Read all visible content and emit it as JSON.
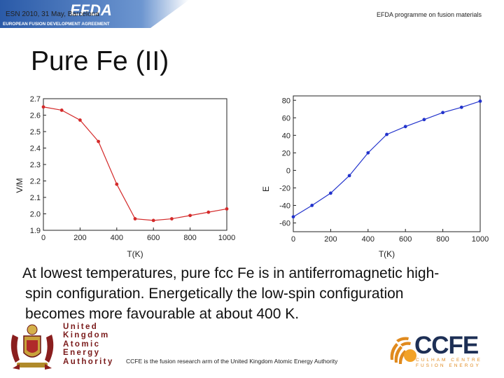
{
  "header": {
    "left": "ESN 2010, 31 May, Barcelona",
    "right": "EFDA programme on fusion materials"
  },
  "banner": {
    "logo_text": "EFDA",
    "subtitle": "EUROPEAN FUSION DEVELOPMENT AGREEMENT"
  },
  "title": "Pure Fe (II)",
  "body": {
    "lines": [
      "At lowest temperatures, pure fcc Fe is in antiferromagnetic high-",
      "spin configuration. Energetically the low-spin configuration",
      "becomes more favourable at about 400 K."
    ]
  },
  "footer": {
    "text": "CCFE is the fusion research arm of the United Kingdom Atomic Energy Authority"
  },
  "ukaea": {
    "lines": [
      "United",
      "Kingdom",
      "Atomic",
      "Energy",
      "Authority"
    ]
  },
  "ccfe": {
    "name": "CCFE",
    "sub_lines": [
      "CULHAM CENTRE",
      "FUSION ENERGY"
    ]
  },
  "colors": {
    "left_series": "#d42a2a",
    "right_series": "#2233cc",
    "ukaea": "#7a1a1a",
    "ccfe_navy": "#1d2f55",
    "ccfe_orange": "#e08a1e"
  },
  "chart_data": [
    {
      "type": "line",
      "xlabel": "T(K)",
      "ylabel": "V/M",
      "xlim": [
        0,
        1000
      ],
      "ylim": [
        1.9,
        2.7
      ],
      "x_ticks": [
        0,
        200,
        400,
        600,
        800,
        1000
      ],
      "y_ticks": [
        1.9,
        2.0,
        2.1,
        2.2,
        2.3,
        2.4,
        2.5,
        2.6,
        2.7
      ],
      "grid": false,
      "series": [
        {
          "x": [
            0,
            100,
            200,
            300,
            400,
            500,
            600,
            700,
            800,
            900,
            1000
          ],
          "values": [
            2.65,
            2.63,
            2.57,
            2.44,
            2.18,
            1.97,
            1.96,
            1.97,
            1.99,
            2.01,
            2.03
          ]
        }
      ]
    },
    {
      "type": "line",
      "xlabel": "T(K)",
      "ylabel": "E",
      "xlim": [
        0,
        1000
      ],
      "ylim": [
        -70,
        85
      ],
      "x_ticks": [
        0,
        200,
        400,
        600,
        800,
        1000
      ],
      "y_ticks": [
        -60,
        -40,
        -20,
        0,
        20,
        40,
        60,
        80
      ],
      "grid": false,
      "series": [
        {
          "x": [
            0,
            100,
            200,
            300,
            400,
            500,
            600,
            700,
            800,
            900,
            1000
          ],
          "values": [
            -53,
            -40,
            -26,
            -6,
            20,
            41,
            50,
            58,
            66,
            72,
            79
          ]
        }
      ]
    }
  ]
}
